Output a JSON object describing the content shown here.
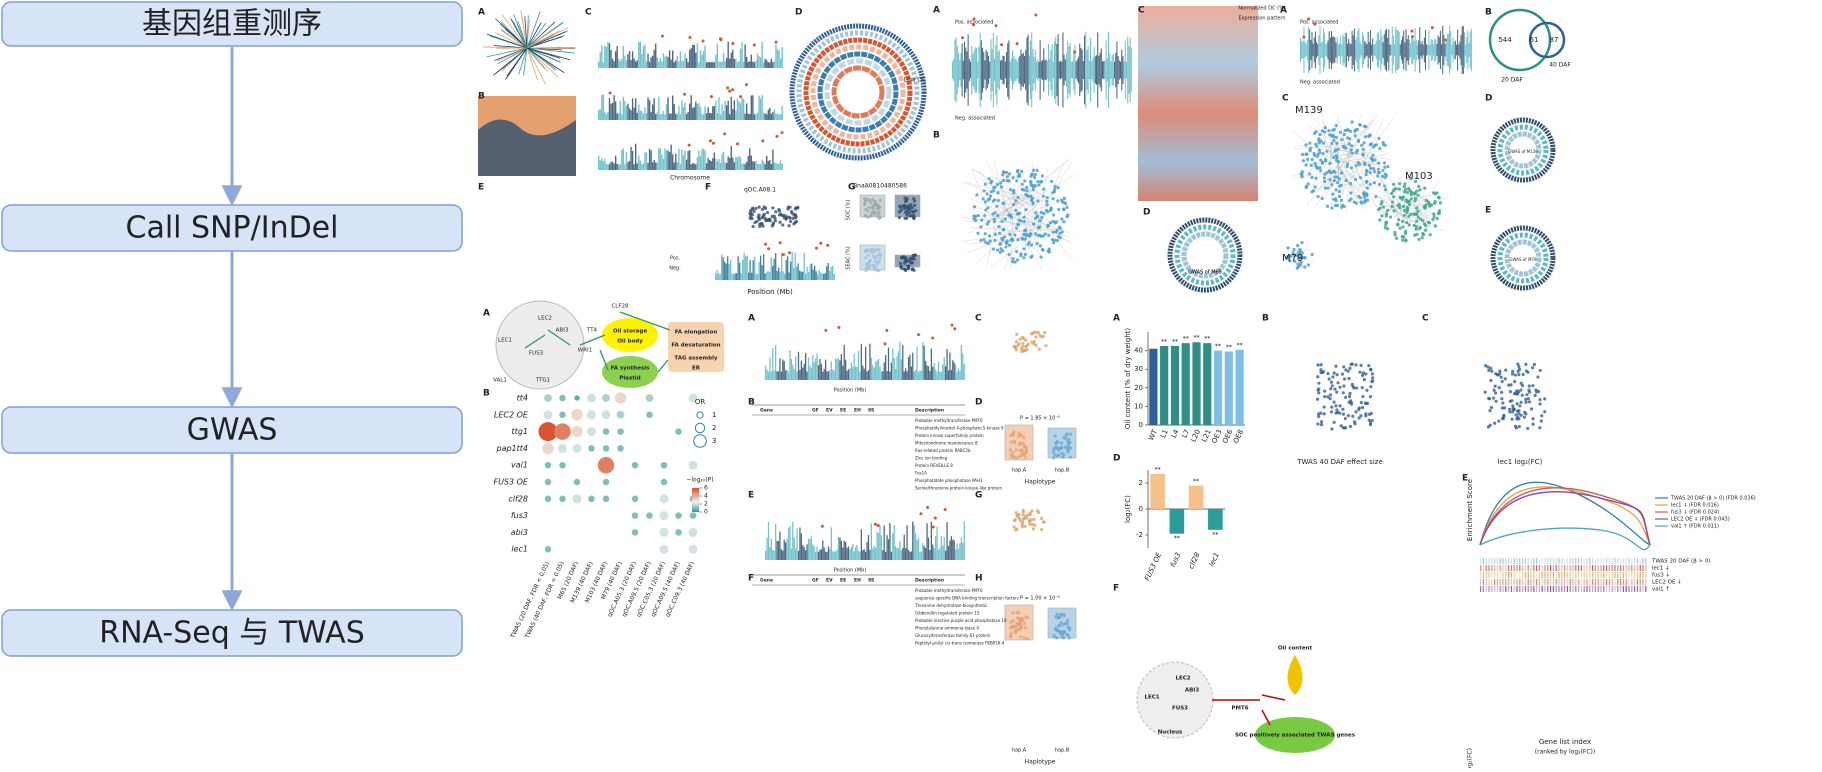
{
  "flow": {
    "steps": [
      "基因组重测序",
      "Call SNP/InDel",
      "GWAS",
      "RNA-Seq 与 TWAS"
    ]
  },
  "fig1": {
    "panels": [
      "A",
      "B",
      "C",
      "D",
      "E",
      "F",
      "G"
    ],
    "texts": [
      "Chromosome",
      "Position (Mb)",
      "qOC.A08.1",
      "BnaA0810480586",
      "Pos.",
      "Neg.",
      "SOC (%)",
      "SEAC (%)",
      "Low OC"
    ]
  },
  "fig2": {
    "panels": [
      "A",
      "B",
      "C",
      "D"
    ],
    "texts": [
      "Pos. associated",
      "Neg. associated",
      "GWAS of M65",
      "Normalized OC (%)",
      "Expression pattern"
    ]
  },
  "fig3": {
    "panels": [
      "A",
      "B",
      "C",
      "D",
      "E"
    ],
    "texts": [
      "Pos. associated",
      "Neg. associated",
      "M139",
      "M103",
      "M79",
      "20 DAF",
      "40 DAF",
      "GWAS of M139",
      "GWAS of M79"
    ],
    "venn": [
      544,
      61,
      87
    ]
  },
  "fig4": {
    "panels": [
      "A",
      "B"
    ],
    "diagram": [
      "LEC2",
      "ABI3",
      "TT4",
      "CLF28",
      "LEC1",
      "FUS3",
      "WRI1",
      "VAL1",
      "TTG1",
      "Oil storage",
      "Oil body",
      "FA synthesis",
      "Plastid",
      "FA elongation",
      "FA desaturation",
      "TAG assembly",
      "ER"
    ],
    "dotplot": {
      "rows": [
        "tt4",
        "LEC2 OE",
        "ttg1",
        "pap1tt4",
        "val1",
        "FUS3 OE",
        "clf28",
        "fus3",
        "abi3",
        "lec1"
      ],
      "columns": [
        "TWAS (20 DAF, FDR < 0.05)",
        "TWAS (40 DAF, FDR < 0.05)",
        "M65 (20 DAF)",
        "M139 (40 DAF)",
        "M103 (40 DAF)",
        "M79 (40 DAF)",
        "qOC.A05.3 (20 DAF)",
        "qOC.A09.5 (20 DAF)",
        "qOC.C05.3 (20 DAF)",
        "qOC.A09.5 (40 DAF)",
        "qOC.C09.3 (40 DAF)"
      ],
      "values": [
        [
          1.5,
          1,
          0.5,
          2,
          1.5,
          3,
          null,
          1.5,
          null,
          null,
          2
        ],
        [
          2,
          1,
          3,
          2,
          2,
          1.5,
          null,
          1,
          null,
          null,
          null
        ],
        [
          6,
          5,
          3,
          2,
          1,
          1,
          null,
          null,
          null,
          1,
          null
        ],
        [
          3,
          2,
          2,
          1,
          1,
          1,
          null,
          null,
          null,
          null,
          null
        ],
        [
          1,
          1,
          null,
          null,
          5,
          null,
          1,
          null,
          1,
          null,
          2
        ],
        [
          1,
          null,
          1,
          null,
          1,
          null,
          null,
          null,
          1,
          null,
          null
        ],
        [
          1,
          1,
          2,
          1,
          1,
          null,
          1,
          null,
          2,
          null,
          1
        ],
        [
          null,
          null,
          null,
          null,
          null,
          null,
          1,
          1,
          2,
          1,
          1
        ],
        [
          null,
          null,
          null,
          null,
          null,
          null,
          1,
          null,
          2,
          1,
          2
        ],
        [
          1,
          null,
          null,
          null,
          null,
          null,
          null,
          null,
          2,
          null,
          2
        ]
      ],
      "clim": [
        0,
        6
      ],
      "colorbar_ticks": [
        6,
        4,
        2,
        0
      ],
      "colorbar_title": "−log₁₀(P)",
      "or_title": "OR",
      "or_ticks": [
        1,
        2,
        3
      ]
    }
  },
  "fig5": {
    "panels": [
      "A",
      "B",
      "C",
      "D",
      "E",
      "F",
      "G",
      "H"
    ],
    "texts": [
      "Position (Mb)",
      "Position (Mb)",
      "Haplotype",
      "Haplotype",
      "hap.A",
      "hap.B",
      "hap.A",
      "hap.B",
      "P = 1.85 × 10⁻⁶",
      "P = 1.00 × 10⁻⁶"
    ],
    "table_header": [
      "Gene",
      "GF",
      "EV",
      "EE",
      "EH",
      "SS",
      "Description"
    ],
    "table_b": [
      "Probable methyltransferase PMT6",
      "Phosphatidylinositol 4-phosphate 5-kinase 9",
      "Protein kinase superfamily protein",
      "Mitochondrome maintenance 8",
      "Ras-related protein RABC2b",
      "Zinc ion binding",
      "Protein REVEILLE 8",
      "Fes1A",
      "Phosphatidate phosphatase PAH1",
      "Serine/threonine-protein kinase-like protein"
    ],
    "table_f": [
      "Probable methyltransferase PMT6",
      "sequence-specific DNA binding transcription factors",
      "Threonine dehydratase biosynthetic",
      "Gibberellin-regulated protein 13",
      "Probable inactive purple acid phosphatase 16",
      "Phenylalanine ammonia-lyase 4",
      "Glucosyltransferase family 61 protein",
      "Peptidyl-prolyl cis-trans isomerase FKBP16-4"
    ]
  },
  "fig6": {
    "panels": [
      "A",
      "B",
      "C",
      "D",
      "E",
      "F"
    ],
    "bars": {
      "ylabel": "Oil content (% of dry weight)",
      "categories": [
        "WT",
        "L1",
        "L4",
        "L7",
        "L20",
        "L21",
        "OE3",
        "OE6",
        "OE8"
      ],
      "values": [
        41,
        42.5,
        42.5,
        44,
        44.5,
        44,
        40,
        39.5,
        40.5
      ],
      "colors": [
        "#2f5f9a",
        "#2f8f86",
        "#2f8f86",
        "#2f8f86",
        "#2f8f86",
        "#2f8f86",
        "#7fbfe6",
        "#7fbfe6",
        "#7fbfe6"
      ],
      "annotations": [
        null,
        "**",
        "**",
        "**",
        "**",
        "**",
        "**",
        "**",
        "**"
      ],
      "ylim": [
        0,
        50
      ],
      "yticks": [
        0,
        10,
        20,
        30,
        40
      ]
    },
    "fc": {
      "ylabel": "log₂(FC)",
      "categories": [
        "FUS3 OE",
        "fus3",
        "clf28",
        "lec1"
      ],
      "values": [
        2.7,
        -1.9,
        1.8,
        -1.6
      ],
      "colors": [
        "#f6c08a",
        "#2a9c9a",
        "#f6c08a",
        "#2a9c9a"
      ],
      "annotations": [
        "**",
        "**",
        "**",
        "**"
      ],
      "ylim": [
        -3,
        3
      ],
      "yticks": [
        -2,
        0,
        2
      ]
    },
    "texts": [
      "TWAS 40 DAF effect size",
      "lec1 log₂(FC)",
      "Enrichment Score",
      "Gene list index",
      "(ranked by log₂(FC))",
      "log₂(FC)"
    ],
    "enrichment_legend": [
      "TWAS 20 DAF (β > 0) (FDR 0.036)",
      "lec1 ↓ (FDR 0.016)",
      "fus3 ↓ (FDR 0.024)",
      "LEC2 OE ↓ (FDR 0.043)",
      "val1 ↑ (FDR 0.011)"
    ],
    "rank_labels": [
      "TWAS 20 DAF (β > 0)",
      "lec1 ↓",
      "fus3 ↓",
      "LEC2 OE ↓",
      "val1 ↑"
    ],
    "diagram": [
      "LEC2",
      "ABI3",
      "LEC1",
      "FUS3",
      "PMT6",
      "Nucleus",
      "Oil content",
      "SOC positively associated TWAS genes"
    ]
  }
}
